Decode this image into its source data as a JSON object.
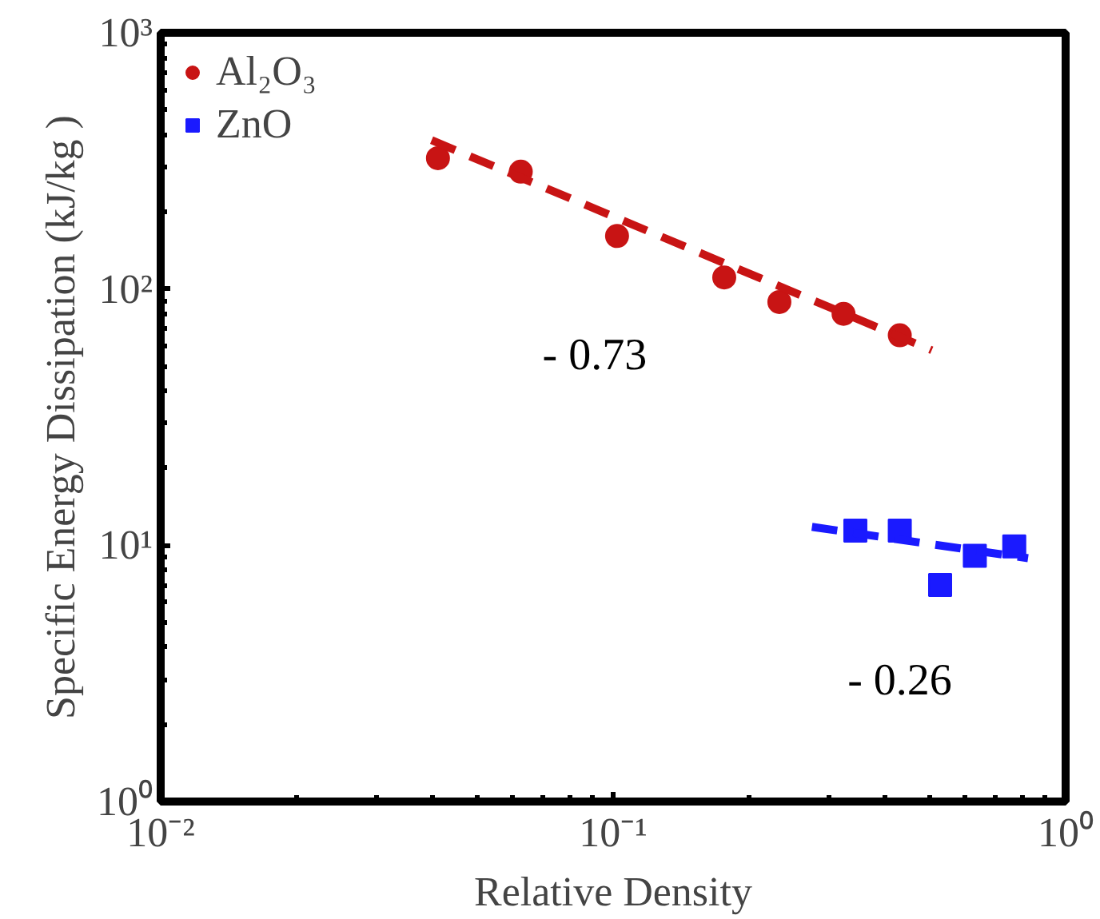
{
  "chart_data": {
    "type": "scatter",
    "xlabel": "Relative Density",
    "ylabel": "Specific Energy Dissipation (kJ/kg )",
    "log": "xy",
    "grid": false,
    "legend": "top left",
    "xlim": [
      0.01,
      1
    ],
    "ylim": [
      1,
      1000
    ],
    "xticks": [
      {
        "value": 0.01,
        "label": "10⁻²"
      },
      {
        "value": 0.1,
        "label": "10⁻¹"
      },
      {
        "value": 1,
        "label": "10⁰"
      }
    ],
    "yticks": [
      {
        "value": 1,
        "label": "10⁰"
      },
      {
        "value": 10,
        "label": "10¹"
      },
      {
        "value": 100,
        "label": "10²"
      },
      {
        "value": 1000,
        "label": "10³"
      }
    ],
    "series": [
      {
        "name": "Al₂O₃",
        "marker": "circle",
        "color": "#c81414",
        "x": [
          0.041,
          0.0625,
          0.102,
          0.176,
          0.233,
          0.323,
          0.43
        ],
        "values": [
          324,
          287,
          161,
          111,
          89,
          80,
          66
        ]
      },
      {
        "name": "ZnO",
        "marker": "square",
        "color": "#1a1aff",
        "x": [
          0.343,
          0.43,
          0.528,
          0.63,
          0.77
        ],
        "values": [
          11.4,
          11.4,
          7.0,
          9.1,
          9.9
        ]
      },
      {
        "type": "line",
        "line_style": "dashed",
        "marker": "none",
        "color": "#c81414",
        "x": [
          0.0397,
          0.506
        ],
        "values": [
          381,
          57.7
        ]
      },
      {
        "type": "line",
        "line_style": "dashed",
        "marker": "none",
        "color": "#1a1aff",
        "x": [
          0.275,
          0.826
        ],
        "values": [
          11.8,
          8.9
        ]
      }
    ],
    "annotations": [
      "- 0.73",
      "- 0.26"
    ]
  }
}
